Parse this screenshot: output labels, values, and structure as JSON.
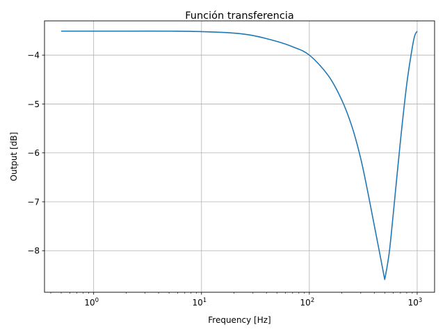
{
  "chart_data": {
    "type": "line",
    "title": "Función transferencia",
    "xlabel": "Frequency [Hz]",
    "ylabel": "Output [dB]",
    "xscale": "log",
    "xlim": [
      0.35,
      1450
    ],
    "ylim": [
      -8.85,
      -3.3
    ],
    "grid": true,
    "x_ticks": [
      {
        "value": 1,
        "mantissa": "10",
        "exp": "0"
      },
      {
        "value": 10,
        "mantissa": "10",
        "exp": "1"
      },
      {
        "value": 100,
        "mantissa": "10",
        "exp": "2"
      },
      {
        "value": 1000,
        "mantissa": "10",
        "exp": "3"
      }
    ],
    "y_ticks": [
      {
        "value": -4,
        "label": "−4"
      },
      {
        "value": -5,
        "label": "−5"
      },
      {
        "value": -6,
        "label": "−6"
      },
      {
        "value": -7,
        "label": "−7"
      },
      {
        "value": -8,
        "label": "−8"
      }
    ],
    "series": [
      {
        "color": "#1f77b4",
        "x": [
          0.5,
          1,
          2,
          5,
          10,
          20,
          30,
          50,
          70,
          100,
          150,
          200,
          250,
          300,
          350,
          400,
          450,
          500,
          550,
          600,
          700,
          800,
          900,
          950,
          1000
        ],
        "y": [
          -3.51,
          -3.51,
          -3.51,
          -3.51,
          -3.52,
          -3.55,
          -3.6,
          -3.72,
          -3.83,
          -4.0,
          -4.42,
          -4.92,
          -5.48,
          -6.12,
          -6.82,
          -7.48,
          -8.06,
          -8.59,
          -8.05,
          -7.25,
          -5.75,
          -4.6,
          -3.85,
          -3.6,
          -3.51
        ]
      }
    ]
  }
}
